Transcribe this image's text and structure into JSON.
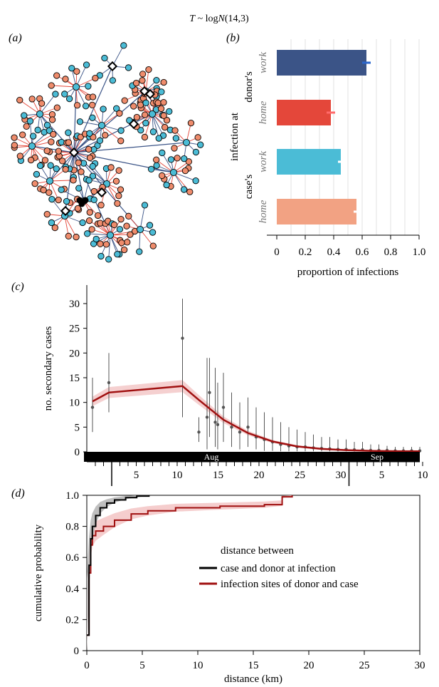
{
  "supertitle": "T ~ logN(14,3)",
  "supertitle_parts": {
    "t": "T",
    "mid": " ~ log",
    "n": "N",
    "end": "(14,3)"
  },
  "panel_labels": {
    "a": "(a)",
    "b": "(b)",
    "c": "(c)",
    "d": "(d)"
  },
  "colors": {
    "navy": "#3b5487",
    "red": "#e4473a",
    "cyan": "#4bbcd6",
    "salmon": "#f2a283",
    "darkred": "#a01010",
    "pink": "#f3c4c4",
    "grey": "#555555",
    "black": "#000000"
  },
  "chart_data": [
    {
      "panel": "a",
      "type": "network",
      "node_colors": {
        "blue": "#4bbcd6",
        "orange": "#ef8c6c",
        "seed": "#000000"
      },
      "edge_colors": {
        "work": "#3b5487",
        "home": "#e4473a"
      }
    },
    {
      "panel": "b",
      "type": "bar",
      "orientation": "horizontal",
      "group_labels": [
        "donor's",
        "case's"
      ],
      "axis_title": "infection at",
      "categories": [
        "work",
        "home",
        "work",
        "home"
      ],
      "values": [
        0.63,
        0.38,
        0.45,
        0.56
      ],
      "errors": [
        0.03,
        0.03,
        0.02,
        0.02
      ],
      "bar_colors": [
        "#3b5487",
        "#e4473a",
        "#4bbcd6",
        "#f2a283"
      ],
      "xlabel": "proportion of infections",
      "xlim": [
        0,
        1
      ],
      "xticks": [
        "0",
        "0.2",
        "0.4",
        "0.6",
        "0.8",
        "1.0"
      ],
      "grid": true
    },
    {
      "panel": "c",
      "type": "line",
      "ylabel": "no. secondary cases",
      "ylim": [
        0,
        30
      ],
      "yticks": [
        "0",
        "5",
        "10",
        "15",
        "20",
        "25",
        "30"
      ],
      "xticks": [
        "5",
        "10",
        "15",
        "20",
        "25",
        "30",
        "5",
        "10"
      ],
      "months": [
        "Aug",
        "Sep"
      ],
      "line": {
        "x": [
          0,
          2,
          11,
          13,
          16,
          19,
          22,
          25,
          28,
          31,
          34,
          37,
          40
        ],
        "y": [
          10.2,
          12.0,
          13.3,
          10.5,
          6.5,
          3.8,
          2.1,
          1.1,
          0.6,
          0.35,
          0.2,
          0.12,
          0.1
        ]
      },
      "points": [
        {
          "x": 0,
          "y": 9,
          "lo": 4,
          "hi": 15
        },
        {
          "x": 2,
          "y": 14,
          "lo": 8,
          "hi": 20
        },
        {
          "x": 11,
          "y": 23,
          "lo": 7,
          "hi": 31
        },
        {
          "x": 13,
          "y": 4,
          "lo": 2,
          "hi": 7
        },
        {
          "x": 14,
          "y": 7,
          "lo": 0.5,
          "hi": 19
        },
        {
          "x": 14.3,
          "y": 12,
          "lo": 3,
          "hi": 19
        },
        {
          "x": 15,
          "y": 6,
          "lo": 1,
          "hi": 17
        },
        {
          "x": 15.3,
          "y": 5.5,
          "lo": 0.5,
          "hi": 14
        },
        {
          "x": 16,
          "y": 9,
          "lo": 2,
          "hi": 16
        },
        {
          "x": 17,
          "y": 5,
          "lo": 1,
          "hi": 12
        },
        {
          "x": 18,
          "y": 4,
          "lo": 0.5,
          "hi": 10
        },
        {
          "x": 19,
          "y": 5,
          "lo": 1,
          "hi": 11
        },
        {
          "x": 20,
          "y": 3,
          "lo": 0.5,
          "hi": 9
        },
        {
          "x": 21,
          "y": 2.5,
          "lo": 0.2,
          "hi": 8
        },
        {
          "x": 22,
          "y": 2,
          "lo": 0.2,
          "hi": 7
        },
        {
          "x": 23,
          "y": 1.5,
          "lo": 0.1,
          "hi": 6
        },
        {
          "x": 24,
          "y": 1.2,
          "lo": 0.1,
          "hi": 5
        },
        {
          "x": 25,
          "y": 1,
          "lo": 0.1,
          "hi": 4.5
        },
        {
          "x": 26,
          "y": 1,
          "lo": 0.1,
          "hi": 4
        },
        {
          "x": 27,
          "y": 0.8,
          "lo": 0.1,
          "hi": 3.5
        },
        {
          "x": 28,
          "y": 0.7,
          "lo": 0.1,
          "hi": 3
        },
        {
          "x": 29,
          "y": 0.6,
          "lo": 0.1,
          "hi": 3
        },
        {
          "x": 30,
          "y": 0.5,
          "lo": 0.1,
          "hi": 2.5
        },
        {
          "x": 31,
          "y": 0.5,
          "lo": 0.1,
          "hi": 2.5
        },
        {
          "x": 32,
          "y": 0.4,
          "lo": 0.1,
          "hi": 2
        },
        {
          "x": 33,
          "y": 0.4,
          "lo": 0.1,
          "hi": 2
        },
        {
          "x": 34,
          "y": 0.3,
          "lo": 0.1,
          "hi": 1.5
        },
        {
          "x": 35,
          "y": 0.3,
          "lo": 0.1,
          "hi": 1.5
        },
        {
          "x": 36,
          "y": 0.3,
          "lo": 0.1,
          "hi": 1.2
        },
        {
          "x": 37,
          "y": 0.2,
          "lo": 0.1,
          "hi": 1
        },
        {
          "x": 38,
          "y": 0.2,
          "lo": 0.1,
          "hi": 1
        },
        {
          "x": 39,
          "y": 0.2,
          "lo": 0.1,
          "hi": 1
        },
        {
          "x": 40,
          "y": 0.2,
          "lo": 0.1,
          "hi": 1
        }
      ]
    },
    {
      "panel": "d",
      "type": "line",
      "xlabel": "distance (km)",
      "ylabel": "cumulative probability",
      "xlim": [
        0,
        30
      ],
      "ylim": [
        0,
        1.0
      ],
      "xticks": [
        "0",
        "5",
        "10",
        "15",
        "20",
        "25",
        "30"
      ],
      "yticks": [
        "0",
        "0.2",
        "0.4",
        "0.6",
        "0.8",
        "1.0"
      ],
      "legend_title": "distance between",
      "series": [
        {
          "name": "case and donor at infection",
          "color": "#000000",
          "x": [
            0,
            0.2,
            0.35,
            0.5,
            0.8,
            1.2,
            1.8,
            2.5,
            3.5,
            4.5,
            5.6
          ],
          "y": [
            0.1,
            0.55,
            0.72,
            0.8,
            0.87,
            0.92,
            0.95,
            0.97,
            0.985,
            0.995,
            1.0
          ]
        },
        {
          "name": "infection sites of donor and case",
          "color": "#a01010",
          "x": [
            0,
            0.2,
            0.35,
            0.5,
            0.8,
            1.5,
            2.5,
            4,
            5.5,
            8,
            12,
            16,
            17.6,
            17.6,
            18.5
          ],
          "y": [
            0.1,
            0.5,
            0.68,
            0.74,
            0.77,
            0.8,
            0.84,
            0.88,
            0.9,
            0.92,
            0.93,
            0.94,
            0.95,
            0.99,
            1.0
          ]
        }
      ]
    }
  ]
}
